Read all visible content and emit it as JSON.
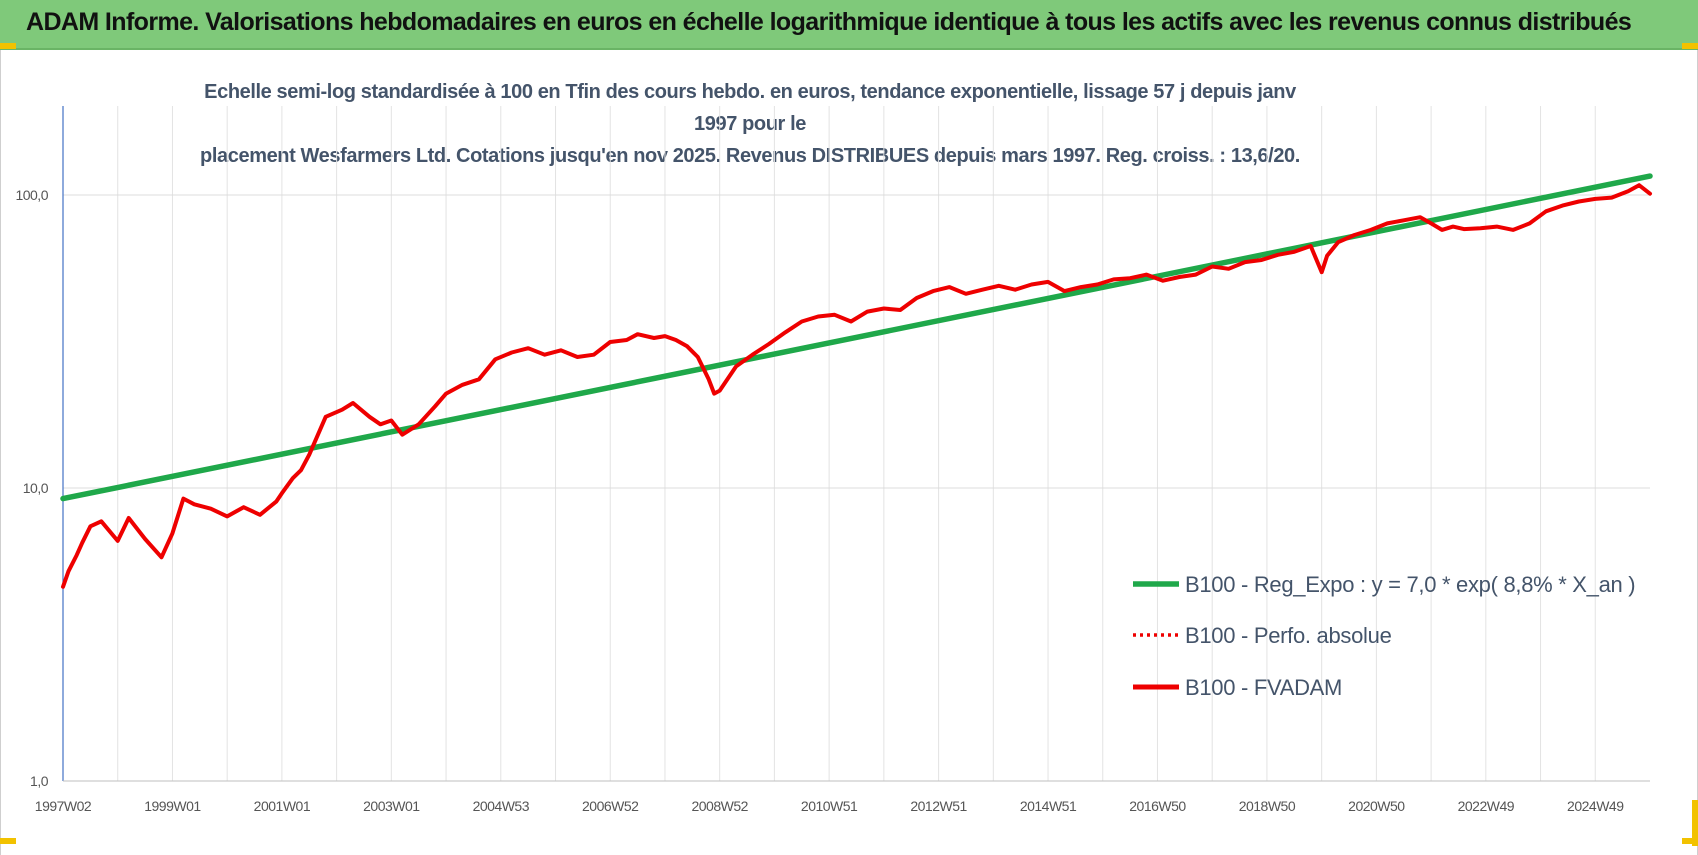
{
  "banner": {
    "title": "ADAM Informe. Valorisations hebdomadaires en euros en échelle logarithmique identique à tous les actifs avec les revenus connus distribués"
  },
  "colors": {
    "banner_bg": "#7fc97a",
    "trend": "#1fa84a",
    "series": "#ee0000",
    "accent_corner": "#f2c200"
  },
  "chart_data": {
    "type": "line",
    "title_lines": [
      "Echelle semi-log standardisée à 100 en Tfin des cours hebdo. en euros, tendance exponentielle, lissage 57 j depuis janv 1997 pour le",
      "placement Wesfarmers Ltd. Cotations jusqu'en nov 2025. Revenus DISTRIBUES depuis mars 1997. Reg. croiss. : 13,6/20."
    ],
    "y_scale": "log",
    "ylim": [
      1,
      200
    ],
    "xlim": [
      1997.0,
      2026.0
    ],
    "grid": true,
    "legend_position": "right",
    "y_ticks": [
      {
        "value": 1,
        "label": "1,0"
      },
      {
        "value": 10,
        "label": "10,0"
      },
      {
        "value": 100,
        "label": "100,0"
      }
    ],
    "x_ticks": [
      {
        "value": 1997.0,
        "label": "1997W02"
      },
      {
        "value": 1999.0,
        "label": "1999W01"
      },
      {
        "value": 2001.0,
        "label": "2001W01"
      },
      {
        "value": 2003.0,
        "label": "2003W01"
      },
      {
        "value": 2005.0,
        "label": "2004W53"
      },
      {
        "value": 2007.0,
        "label": "2006W52"
      },
      {
        "value": 2009.0,
        "label": "2008W52"
      },
      {
        "value": 2011.0,
        "label": "2010W51"
      },
      {
        "value": 2013.0,
        "label": "2012W51"
      },
      {
        "value": 2015.0,
        "label": "2014W51"
      },
      {
        "value": 2017.0,
        "label": "2016W50"
      },
      {
        "value": 2019.0,
        "label": "2018W50"
      },
      {
        "value": 2021.0,
        "label": "2020W50"
      },
      {
        "value": 2023.0,
        "label": "2022W49"
      },
      {
        "value": 2025.0,
        "label": "2024W49"
      }
    ],
    "legend": [
      {
        "name": "B100 - Reg_Expo : y = 7,0 * exp( 8,8% *  X_an )",
        "style": "solid-green"
      },
      {
        "name": "B100 - Perfo. absolue",
        "style": "dotted-red"
      },
      {
        "name": "B100 - FVADAM",
        "style": "solid-red"
      }
    ],
    "series": [
      {
        "name": "B100 - Reg_Expo : y = 7,0 * exp( 8,8% *  X_an )",
        "x": [
          1997.0,
          2026.0
        ],
        "y": [
          9.2,
          116
        ]
      },
      {
        "name": "B100 - FVADAM",
        "x": [
          1997.0,
          1997.1,
          1997.25,
          1997.35,
          1997.5,
          1997.7,
          1998.0,
          1998.2,
          1998.5,
          1998.8,
          1999.0,
          1999.2,
          1999.4,
          1999.7,
          2000.0,
          2000.3,
          2000.6,
          2000.9,
          2001.0,
          2001.2,
          2001.35,
          2001.5,
          2001.8,
          2002.1,
          2002.3,
          2002.6,
          2002.8,
          2003.0,
          2003.2,
          2003.5,
          2003.8,
          2004.0,
          2004.3,
          2004.6,
          2004.9,
          2005.2,
          2005.5,
          2005.8,
          2006.1,
          2006.4,
          2006.7,
          2007.0,
          2007.3,
          2007.5,
          2007.8,
          2008.0,
          2008.2,
          2008.4,
          2008.6,
          2008.8,
          2008.9,
          2009.0,
          2009.3,
          2009.6,
          2009.9,
          2010.2,
          2010.5,
          2010.8,
          2011.1,
          2011.4,
          2011.7,
          2012.0,
          2012.3,
          2012.6,
          2012.9,
          2013.2,
          2013.5,
          2013.8,
          2014.1,
          2014.4,
          2014.7,
          2015.0,
          2015.3,
          2015.6,
          2015.9,
          2016.2,
          2016.5,
          2016.8,
          2017.1,
          2017.4,
          2017.7,
          2018.0,
          2018.3,
          2018.6,
          2018.9,
          2019.2,
          2019.5,
          2019.8,
          2020.0,
          2020.1,
          2020.3,
          2020.6,
          2020.9,
          2021.2,
          2021.5,
          2021.8,
          2022.0,
          2022.2,
          2022.4,
          2022.6,
          2022.9,
          2023.2,
          2023.5,
          2023.8,
          2024.1,
          2024.4,
          2024.7,
          2025.0,
          2025.3,
          2025.6,
          2025.8,
          2026.0
        ],
        "y": [
          4.6,
          5.2,
          5.9,
          6.5,
          7.4,
          7.7,
          6.6,
          7.9,
          6.7,
          5.8,
          7.0,
          9.2,
          8.8,
          8.5,
          8.0,
          8.6,
          8.1,
          9.0,
          9.6,
          10.8,
          11.5,
          13.0,
          17.5,
          18.5,
          19.5,
          17.5,
          16.5,
          17.0,
          15.2,
          16.5,
          19.0,
          21.0,
          22.5,
          23.5,
          27.5,
          29.0,
          30.0,
          28.5,
          29.5,
          28.0,
          28.5,
          31.5,
          32.0,
          33.5,
          32.5,
          33.0,
          32.0,
          30.5,
          28.0,
          23.5,
          21.0,
          21.5,
          26.0,
          28.5,
          31.0,
          34.0,
          37.0,
          38.5,
          39.0,
          37.0,
          40.0,
          41.0,
          40.5,
          44.5,
          47.0,
          48.5,
          46.0,
          47.5,
          49.0,
          47.5,
          49.5,
          50.5,
          47.0,
          48.5,
          49.5,
          51.5,
          52.0,
          53.5,
          51.0,
          52.5,
          53.5,
          57.0,
          56.0,
          59.0,
          60.0,
          62.5,
          64.0,
          67.0,
          54.5,
          62.0,
          69.0,
          73.0,
          76.0,
          80.0,
          82.0,
          84.0,
          80.0,
          76.0,
          78.0,
          76.5,
          77.0,
          78.0,
          76.0,
          80.0,
          88.0,
          92.0,
          95.0,
          97.0,
          98.0,
          103.0,
          108.0,
          101.0
        ]
      }
    ]
  }
}
